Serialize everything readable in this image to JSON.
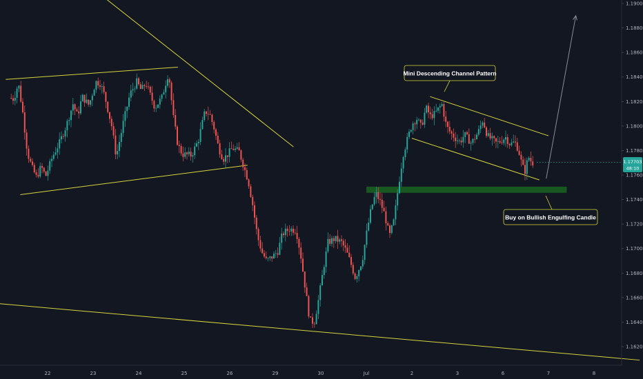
{
  "chart_data": {
    "type": "candlestick",
    "title": "",
    "xlabel": "",
    "ylabel": "",
    "ylim": [
      1.1608,
      1.1905
    ],
    "grid": false,
    "colors": {
      "background": "#131722",
      "bullish": "#26a69a",
      "bearish": "#ef5350",
      "trendline": "#d6d63b",
      "zone": "#1b5e20",
      "arrow": "#8a8e97",
      "axis_text": "#b2b5be",
      "price_tag": "#26a69a"
    },
    "x_ticks": [
      {
        "label": "22",
        "pos": 0
      },
      {
        "label": "23",
        "pos": 1
      },
      {
        "label": "24",
        "pos": 2
      },
      {
        "label": "25",
        "pos": 3
      },
      {
        "label": "26",
        "pos": 4
      },
      {
        "label": "29",
        "pos": 5
      },
      {
        "label": "30",
        "pos": 6
      },
      {
        "label": "Jul",
        "pos": 7
      },
      {
        "label": "2",
        "pos": 8
      },
      {
        "label": "3",
        "pos": 9
      },
      {
        "label": "6",
        "pos": 10
      },
      {
        "label": "7",
        "pos": 11
      },
      {
        "label": "8",
        "pos": 12
      }
    ],
    "y_ticks": [
      "1.19000",
      "1.18800",
      "1.18600",
      "1.18400",
      "1.18200",
      "1.18000",
      "1.17800",
      "1.17600",
      "1.17400",
      "1.17200",
      "1.17000",
      "1.16800",
      "1.16600",
      "1.16400",
      "1.16200"
    ],
    "current_price": {
      "label": "1.17703",
      "countdown": "48:10",
      "value": 1.17703
    },
    "price_path": [
      [
        -0.8,
        1.1823
      ],
      [
        -0.7,
        1.1822
      ],
      [
        -0.6,
        1.1835
      ],
      [
        -0.5,
        1.181
      ],
      [
        -0.4,
        1.1778
      ],
      [
        -0.3,
        1.1766
      ],
      [
        -0.2,
        1.1758
      ],
      [
        -0.1,
        1.1767
      ],
      [
        0.0,
        1.1759
      ],
      [
        0.15,
        1.1775
      ],
      [
        0.3,
        1.1786
      ],
      [
        0.45,
        1.18
      ],
      [
        0.6,
        1.1818
      ],
      [
        0.7,
        1.1808
      ],
      [
        0.8,
        1.1824
      ],
      [
        0.95,
        1.1817
      ],
      [
        1.1,
        1.1836
      ],
      [
        1.2,
        1.1835
      ],
      [
        1.3,
        1.1824
      ],
      [
        1.45,
        1.18
      ],
      [
        1.55,
        1.1775
      ],
      [
        1.7,
        1.1802
      ],
      [
        1.85,
        1.1826
      ],
      [
        2.0,
        1.1836
      ],
      [
        2.1,
        1.1829
      ],
      [
        2.2,
        1.1835
      ],
      [
        2.3,
        1.1825
      ],
      [
        2.4,
        1.1815
      ],
      [
        2.55,
        1.1823
      ],
      [
        2.7,
        1.1844
      ],
      [
        2.8,
        1.1808
      ],
      [
        2.9,
        1.1785
      ],
      [
        3.0,
        1.1777
      ],
      [
        3.2,
        1.1776
      ],
      [
        3.35,
        1.1788
      ],
      [
        3.5,
        1.1812
      ],
      [
        3.6,
        1.181
      ],
      [
        3.7,
        1.1798
      ],
      [
        3.8,
        1.1782
      ],
      [
        3.9,
        1.1773
      ],
      [
        4.0,
        1.1777
      ],
      [
        4.1,
        1.1782
      ],
      [
        4.25,
        1.1779
      ],
      [
        4.35,
        1.1767
      ],
      [
        4.45,
        1.1755
      ],
      [
        4.55,
        1.1735
      ],
      [
        4.65,
        1.171
      ],
      [
        4.75,
        1.1697
      ],
      [
        4.85,
        1.169
      ],
      [
        5.0,
        1.1694
      ],
      [
        5.1,
        1.1698
      ],
      [
        5.2,
        1.1712
      ],
      [
        5.35,
        1.1716
      ],
      [
        5.5,
        1.1715
      ],
      [
        5.6,
        1.1695
      ],
      [
        5.7,
        1.1668
      ],
      [
        5.8,
        1.1641
      ],
      [
        5.9,
        1.164
      ],
      [
        6.0,
        1.166
      ],
      [
        6.1,
        1.1684
      ],
      [
        6.2,
        1.1705
      ],
      [
        6.35,
        1.1708
      ],
      [
        6.5,
        1.1705
      ],
      [
        6.6,
        1.1698
      ],
      [
        6.7,
        1.1688
      ],
      [
        6.8,
        1.1676
      ],
      [
        6.95,
        1.169
      ],
      [
        7.05,
        1.1713
      ],
      [
        7.15,
        1.1733
      ],
      [
        7.25,
        1.1745
      ],
      [
        7.35,
        1.1738
      ],
      [
        7.45,
        1.1727
      ],
      [
        7.55,
        1.171
      ],
      [
        7.65,
        1.1723
      ],
      [
        7.75,
        1.1752
      ],
      [
        7.85,
        1.1777
      ],
      [
        7.95,
        1.179
      ],
      [
        8.05,
        1.1802
      ],
      [
        8.15,
        1.1806
      ],
      [
        8.25,
        1.1799
      ],
      [
        8.35,
        1.1815
      ],
      [
        8.45,
        1.1808
      ],
      [
        8.55,
        1.181
      ],
      [
        8.7,
        1.1818
      ],
      [
        8.8,
        1.18
      ],
      [
        8.9,
        1.1794
      ],
      [
        9.0,
        1.179
      ],
      [
        9.1,
        1.1787
      ],
      [
        9.2,
        1.1793
      ],
      [
        9.35,
        1.1786
      ],
      [
        9.5,
        1.1795
      ],
      [
        9.6,
        1.1805
      ],
      [
        9.7,
        1.1792
      ],
      [
        9.8,
        1.1789
      ],
      [
        9.9,
        1.1786
      ],
      [
        10.0,
        1.1788
      ],
      [
        10.1,
        1.1791
      ],
      [
        10.2,
        1.1785
      ],
      [
        10.3,
        1.1787
      ],
      [
        10.38,
        1.1781
      ],
      [
        10.45,
        1.177
      ],
      [
        10.52,
        1.1762
      ],
      [
        10.6,
        1.1775
      ],
      [
        10.68,
        1.177
      ]
    ],
    "trendlines": [
      {
        "name": "upper-wedge-line",
        "from": [
          -0.92,
          1.1838
        ],
        "to": [
          2.86,
          1.1848
        ]
      },
      {
        "name": "lower-wedge-line",
        "from": [
          -0.6,
          1.1744
        ],
        "to": [
          4.39,
          1.1768
        ]
      },
      {
        "name": "descending-resistance-line",
        "from": [
          1.0,
          1.1912
        ],
        "to": [
          5.4,
          1.1783
        ]
      },
      {
        "name": "long-support-line",
        "from": [
          -1.05,
          1.1655
        ],
        "to": [
          13.0,
          1.1609
        ]
      },
      {
        "name": "channel-upper-line",
        "from": [
          8.4,
          1.1824
        ],
        "to": [
          11.0,
          1.1792
        ]
      },
      {
        "name": "channel-lower-line",
        "from": [
          8.0,
          1.179
        ],
        "to": [
          10.8,
          1.1756
        ]
      }
    ],
    "zone": {
      "name": "buy-zone",
      "from_x": 7.0,
      "to_x": 11.4,
      "y_top": 1.17505,
      "y_bottom": 1.17455
    },
    "projection_arrow": {
      "from": [
        10.95,
        1.1757
      ],
      "to": [
        11.6,
        1.189
      ]
    },
    "annotations": [
      {
        "id": "channel",
        "text": "Mini Descending Channel Pattern"
      },
      {
        "id": "buy",
        "text": "Buy on Bullish Engulfing Candle"
      }
    ]
  }
}
